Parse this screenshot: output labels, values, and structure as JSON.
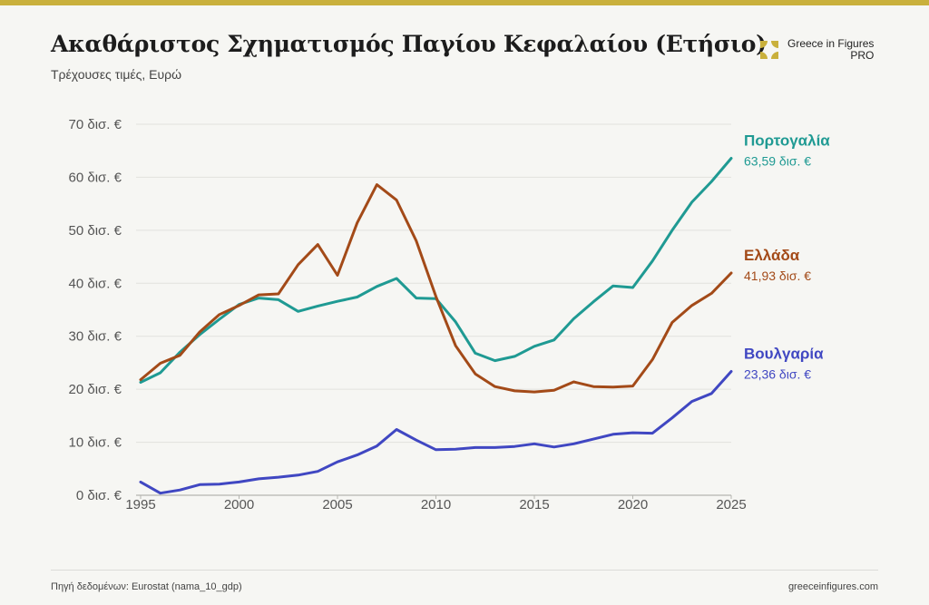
{
  "title": "Ακαθάριστος Σχηματισμός Παγίου Κεφαλαίου (Ετήσιο)",
  "subtitle": "Τρέχουσες τιμές, Ευρώ",
  "logo": {
    "name": "Greece in Figures",
    "tier": "PRO",
    "icon": "greece-in-figures-logo-icon",
    "color": "#c9b03c"
  },
  "footer": {
    "source": "Πηγή δεδομένων: Eurostat (nama_10_gdp)",
    "website": "greeceinfigures.com"
  },
  "chart_data": {
    "type": "line",
    "title": "",
    "xlabel": "",
    "ylabel": "",
    "xlim": [
      1995,
      2025
    ],
    "ylim": [
      0,
      70
    ],
    "grid": true,
    "legend": "end-labels-right",
    "x_ticks": [
      "1995",
      "2000",
      "2005",
      "2010",
      "2015",
      "2020",
      "2025"
    ],
    "y_ticks": [
      "0 δισ. €",
      "10 δισ. €",
      "20 δισ. €",
      "30 δισ. €",
      "40 δισ. €",
      "50 δισ. €",
      "60 δισ. €",
      "70 δισ. €"
    ],
    "x": [
      1995,
      1996,
      1997,
      1998,
      1999,
      2000,
      2001,
      2002,
      2003,
      2004,
      2005,
      2006,
      2007,
      2008,
      2009,
      2010,
      2011,
      2012,
      2013,
      2014,
      2015,
      2016,
      2017,
      2018,
      2019,
      2020,
      2021,
      2022,
      2023,
      2024,
      2025
    ],
    "series": [
      {
        "name": "Πορτογαλία",
        "end_label": "63,59 δισ. €",
        "color": "#1f9a93",
        "values": [
          21.3,
          23.1,
          27.0,
          30.3,
          33.2,
          36.0,
          37.2,
          36.9,
          34.7,
          35.7,
          36.6,
          37.4,
          39.4,
          40.9,
          37.2,
          37.1,
          32.7,
          26.8,
          25.4,
          26.2,
          28.1,
          29.3,
          33.3,
          36.5,
          39.5,
          39.2,
          44.2,
          50.0,
          55.3,
          59.2,
          63.59
        ]
      },
      {
        "name": "Ελλάδα",
        "end_label": "41,93 δισ. €",
        "color": "#a34a18",
        "values": [
          21.8,
          24.9,
          26.4,
          30.8,
          34.1,
          35.8,
          37.8,
          38.0,
          43.5,
          47.3,
          41.5,
          51.4,
          58.6,
          55.7,
          48.0,
          37.5,
          28.2,
          22.9,
          20.5,
          19.7,
          19.5,
          19.8,
          21.4,
          20.5,
          20.4,
          20.6,
          25.6,
          32.6,
          35.8,
          38.1,
          41.93
        ]
      },
      {
        "name": "Βουλγαρία",
        "end_label": "23,36 δισ. €",
        "color": "#4047c2",
        "values": [
          2.5,
          0.4,
          1.0,
          2.0,
          2.1,
          2.5,
          3.1,
          3.4,
          3.8,
          4.5,
          6.3,
          7.6,
          9.3,
          12.4,
          10.4,
          8.6,
          8.7,
          9.0,
          9.0,
          9.2,
          9.7,
          9.1,
          9.7,
          10.6,
          11.5,
          11.8,
          11.7,
          14.6,
          17.7,
          19.2,
          23.36
        ]
      }
    ]
  }
}
